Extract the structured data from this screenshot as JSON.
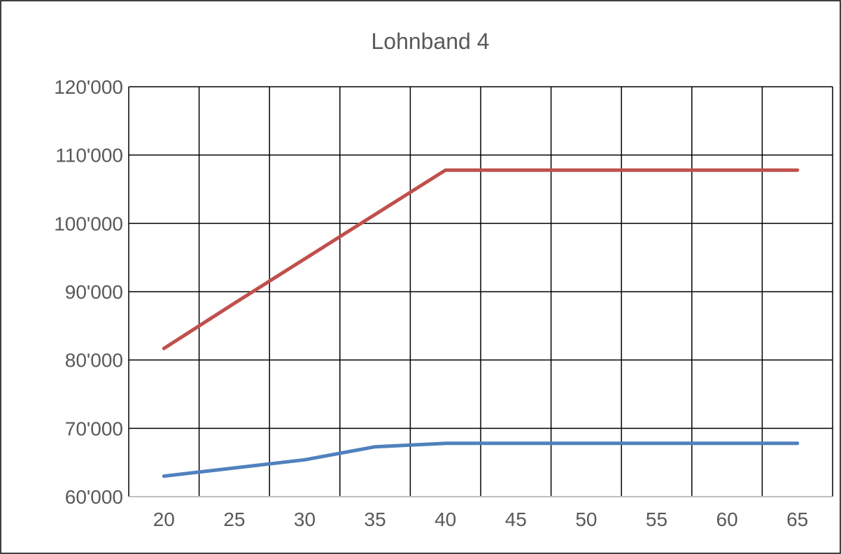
{
  "chart_data": {
    "type": "line",
    "title": "Lohnband 4",
    "xlabel": "",
    "ylabel": "",
    "x": [
      20,
      25,
      30,
      35,
      40,
      45,
      50,
      55,
      60,
      65
    ],
    "x_tick_labels": [
      "20",
      "25",
      "30",
      "35",
      "40",
      "45",
      "50",
      "55",
      "60",
      "65"
    ],
    "ylim": [
      60000,
      120000
    ],
    "y_ticks": [
      60000,
      70000,
      80000,
      90000,
      100000,
      110000,
      120000
    ],
    "y_tick_labels": [
      "60'000",
      "70'000",
      "80'000",
      "90'000",
      "100'000",
      "110'000",
      "120'000"
    ],
    "grid": true,
    "legend": "none",
    "series": [
      {
        "color": "#C0504D",
        "values": [
          81700,
          88300,
          94800,
          101300,
          107800,
          107800,
          107800,
          107800,
          107800,
          107800
        ]
      },
      {
        "color": "#4F81BD",
        "values": [
          63000,
          64200,
          65400,
          67300,
          67800,
          67800,
          67800,
          67800,
          67800,
          67800
        ]
      }
    ]
  }
}
